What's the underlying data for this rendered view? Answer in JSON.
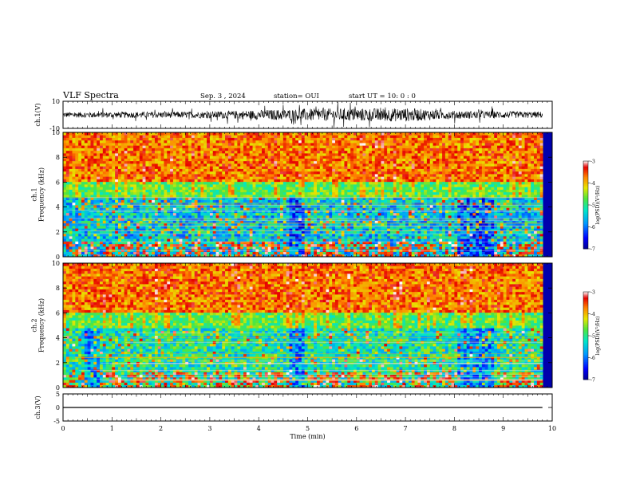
{
  "header": {
    "title": "VLF Spectra",
    "date": "Sep. 3 , 2024",
    "station": "station= OUI",
    "start": "start UT = 10: 0 : 0"
  },
  "chart_data": [
    {
      "type": "line",
      "name": "ch1-waveform",
      "ylabel": "ch.1(V)",
      "ylim": [
        -10,
        10
      ],
      "yticks": [
        "10",
        "-10"
      ],
      "xlim": [
        0,
        10
      ],
      "note_amplitude_profile": [
        [
          0,
          2
        ],
        [
          3,
          2.5
        ],
        [
          5,
          4.5
        ],
        [
          7,
          5
        ],
        [
          8,
          3
        ],
        [
          10,
          2.2
        ]
      ]
    },
    {
      "type": "heatmap",
      "name": "ch1-spectrogram",
      "ylabel": "ch.1\nFrequency (kHz)",
      "ylabel_lines": [
        "ch.1",
        "Frequency (kHz)"
      ],
      "ylim": [
        0,
        10
      ],
      "yticks": [
        "0",
        "2",
        "4",
        "6",
        "8",
        "10"
      ],
      "xlim": [
        0,
        10
      ],
      "colorbar": {
        "label": "log(PSD)(V²/Hz)",
        "range": [
          -7,
          -3
        ],
        "ticks": [
          "-3",
          "-4",
          "-5",
          "-6",
          "-7"
        ]
      }
    },
    {
      "type": "heatmap",
      "name": "ch2-spectrogram",
      "ylabel": "ch.2\nFrequency (kHz)",
      "ylabel_lines": [
        "ch.2",
        "Frequency (kHz)"
      ],
      "ylim": [
        0,
        10
      ],
      "yticks": [
        "0",
        "2",
        "4",
        "6",
        "8",
        "10"
      ],
      "xlim": [
        0,
        10
      ],
      "colorbar": {
        "label": "log(PSD)(V²/Hz)",
        "range": [
          -7,
          -3
        ],
        "ticks": [
          "-3",
          "-4",
          "-5",
          "-6",
          "-7"
        ]
      }
    },
    {
      "type": "line",
      "name": "ch3-waveform",
      "ylabel": "ch.3(V)",
      "ylim": [
        -5,
        5
      ],
      "yticks": [
        "5",
        "0",
        "-5"
      ],
      "x": [
        0,
        9.8
      ],
      "y": [
        0,
        0
      ],
      "xlim": [
        0,
        10
      ],
      "xlabel": "Time (min)",
      "xticks": [
        "0",
        "1",
        "2",
        "3",
        "4",
        "5",
        "6",
        "7",
        "8",
        "9",
        "10"
      ]
    }
  ]
}
